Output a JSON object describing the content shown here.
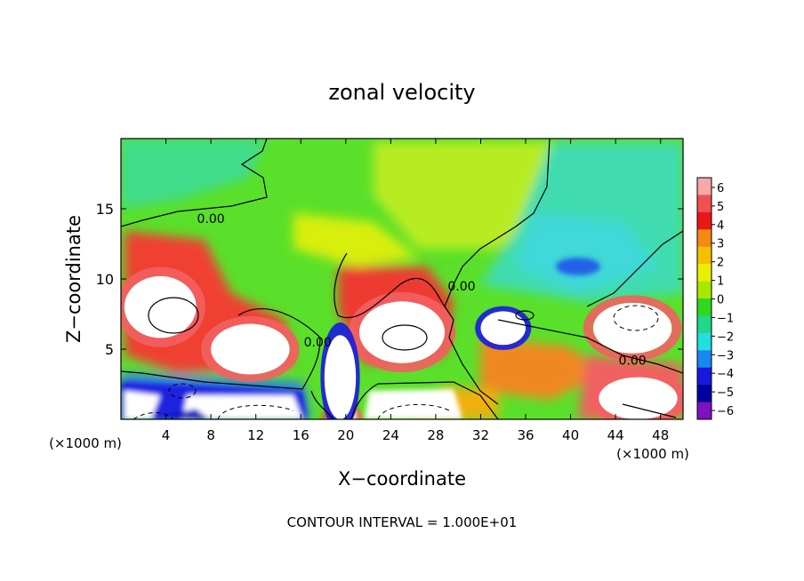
{
  "chart_data": {
    "type": "heatmap",
    "title": "zonal velocity",
    "xlabel": "X−coordinate",
    "ylabel": "Z−coordinate",
    "x_unit_note": "(×1000 m)",
    "y_unit_note": "(×1000 m)",
    "footer": "CONTOUR INTERVAL = 1.000E+01",
    "xlim": [
      0,
      50
    ],
    "ylim": [
      0,
      20
    ],
    "x_ticks": [
      4,
      8,
      12,
      16,
      20,
      24,
      28,
      32,
      36,
      40,
      44,
      48
    ],
    "y_ticks": [
      5,
      10,
      15
    ],
    "colorbar": {
      "ticks": [
        "6",
        "5",
        "4",
        "3",
        "2",
        "1",
        "0",
        "−1",
        "−2",
        "−3",
        "−4",
        "−5",
        "−6"
      ],
      "colors": [
        "#f7a8a8",
        "#f25050",
        "#e81818",
        "#f58a10",
        "#f5c000",
        "#e8f000",
        "#a8e800",
        "#30d820",
        "#20d888",
        "#20e0e0",
        "#1888f0",
        "#1818e0",
        "#0000a0",
        "#8010c0"
      ]
    },
    "contour_labels": [
      {
        "text": "0.00",
        "x": 8,
        "y": 14.3
      },
      {
        "text": "0.00",
        "x": 17.5,
        "y": 5.5
      },
      {
        "text": "0.00",
        "x": 30.3,
        "y": 9.5
      },
      {
        "text": "0.00",
        "x": 45.5,
        "y": 4.2
      }
    ],
    "features": [
      {
        "name": "positive-core-west-upper",
        "x": 3.5,
        "y": 8,
        "rx": 3.2,
        "ry": 2.2,
        "level": 6
      },
      {
        "name": "positive-core-west-lower",
        "x": 11.5,
        "y": 5,
        "rx": 3.5,
        "ry": 1.8,
        "level": 6
      },
      {
        "name": "positive-core-center",
        "x": 25,
        "y": 6.2,
        "rx": 3.8,
        "ry": 2.2,
        "level": 6
      },
      {
        "name": "positive-core-east",
        "x": 45.5,
        "y": 6.5,
        "rx": 3.5,
        "ry": 1.8,
        "level": 6
      },
      {
        "name": "positive-core-southeast",
        "x": 46,
        "y": 1.5,
        "rx": 3.5,
        "ry": 1.5,
        "level": 6
      },
      {
        "name": "negative-core-column",
        "x": 19.5,
        "y": 3,
        "rx": 1.4,
        "ry": 3,
        "level": -5
      },
      {
        "name": "negative-core-east",
        "x": 34,
        "y": 6.5,
        "rx": 2,
        "ry": 1.2,
        "level": -5
      }
    ]
  }
}
